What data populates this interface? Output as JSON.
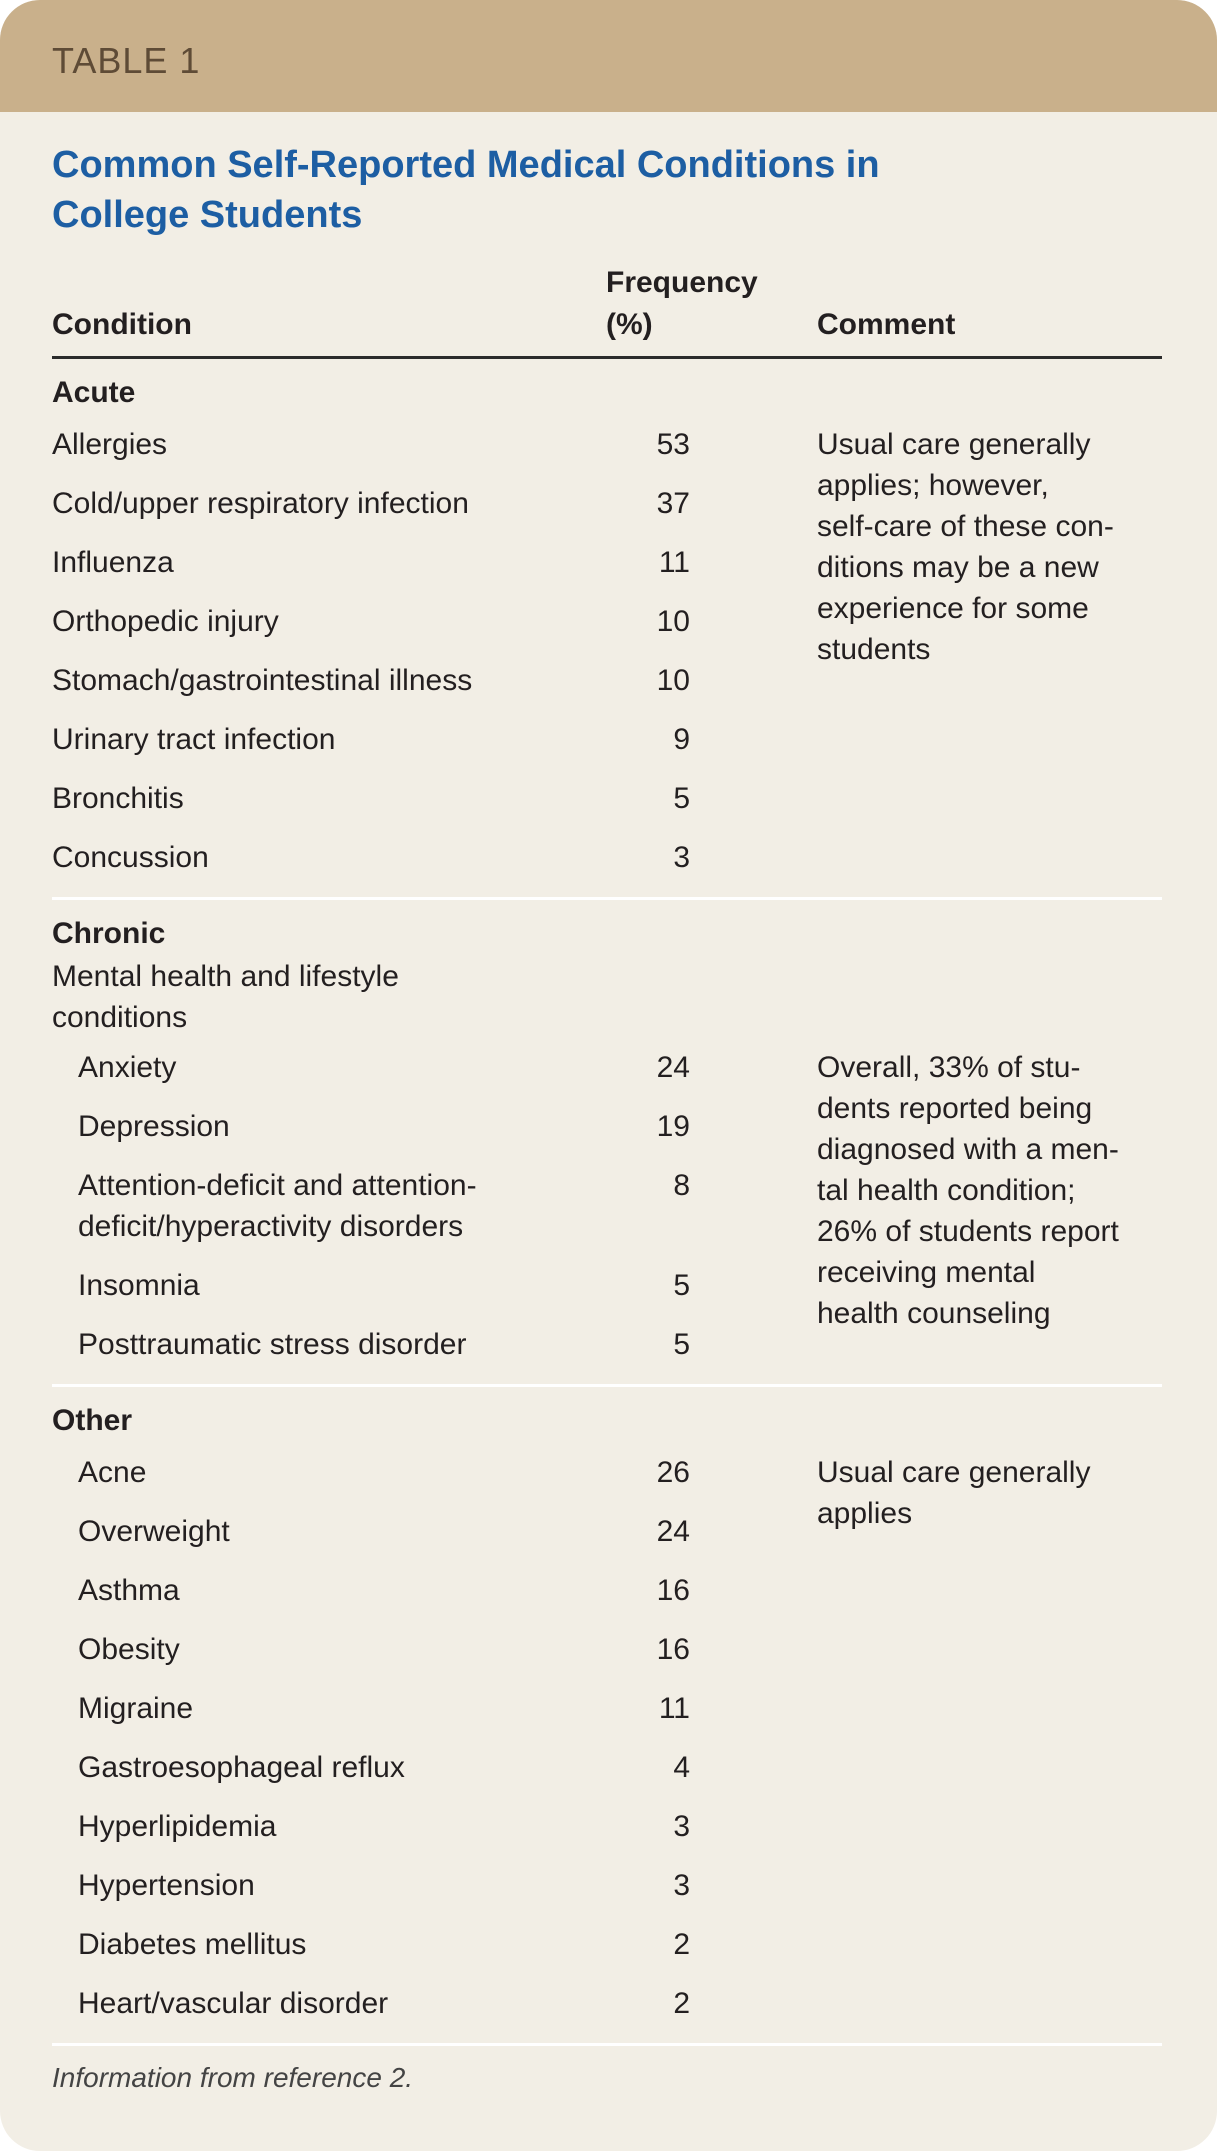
{
  "header": {
    "label": "TABLE 1",
    "title": "Common Self-Reported Medical Conditions in College Students"
  },
  "table": {
    "columns": [
      "Condition",
      "Frequency (%)",
      "Comment"
    ],
    "sections": [
      {
        "label": "Acute",
        "rows": [
          {
            "condition": "Allergies",
            "frequency": 53
          },
          {
            "condition": "Cold/upper respiratory infection",
            "frequency": 37
          },
          {
            "condition": "Influenza",
            "frequency": 11
          },
          {
            "condition": "Orthopedic injury",
            "frequency": 10
          },
          {
            "condition": "Stomach/gastrointestinal illness",
            "frequency": 10
          },
          {
            "condition": "Urinary tract infection",
            "frequency": 9
          },
          {
            "condition": "Bronchitis",
            "frequency": 5
          },
          {
            "condition": "Concussion",
            "frequency": 3
          }
        ],
        "comment": [
          "Usual care generally",
          "applies; however,",
          "self-care of these con-",
          "ditions may be a new",
          "experience for some",
          "students"
        ]
      },
      {
        "label": "Chronic",
        "subheading": "Mental health and lifestyle conditions",
        "rows": [
          {
            "condition": "Anxiety",
            "frequency": 24
          },
          {
            "condition": "Depression",
            "frequency": 19
          },
          {
            "condition": "Attention-deficit and attention-deficit/hyperactivity disorders",
            "frequency": 8
          },
          {
            "condition": "Insomnia",
            "frequency": 5
          },
          {
            "condition": "Posttraumatic stress disorder",
            "frequency": 5
          }
        ],
        "comment": [
          "Overall, 33% of stu-",
          "dents reported being",
          "diagnosed with a men-",
          "tal health condition;",
          "26% of students report",
          "receiving mental",
          "health counseling"
        ]
      },
      {
        "label": "Other",
        "rows": [
          {
            "condition": "Acne",
            "frequency": 26
          },
          {
            "condition": "Overweight",
            "frequency": 24
          },
          {
            "condition": "Asthma",
            "frequency": 16
          },
          {
            "condition": "Obesity",
            "frequency": 16
          },
          {
            "condition": "Migraine",
            "frequency": 11
          },
          {
            "condition": "Gastroesophageal reflux",
            "frequency": 4
          },
          {
            "condition": "Hyperlipidemia",
            "frequency": 3
          },
          {
            "condition": "Hypertension",
            "frequency": 3
          },
          {
            "condition": "Diabetes mellitus",
            "frequency": 2
          },
          {
            "condition": "Heart/vascular disorder",
            "frequency": 2
          }
        ],
        "comment": [
          "Usual care generally",
          "applies"
        ]
      }
    ]
  },
  "footer": "Information from reference 2."
}
